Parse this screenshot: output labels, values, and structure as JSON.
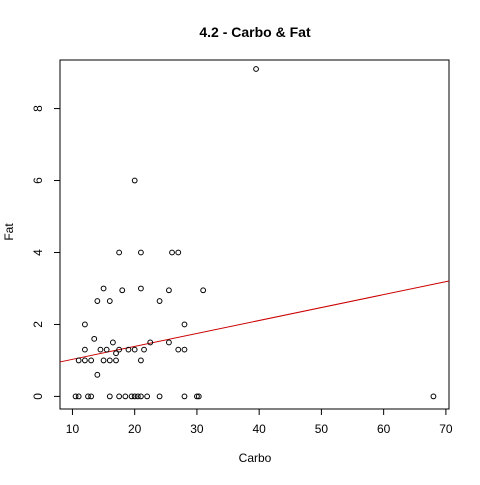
{
  "chart_data": {
    "type": "scatter",
    "title": "4.2 - Carbo & Fat",
    "xlabel": "Carbo",
    "ylabel": "Fat",
    "xlim": [
      8,
      70.5
    ],
    "ylim": [
      -0.35,
      9.35
    ],
    "x_ticks": [
      10,
      20,
      30,
      40,
      50,
      60,
      70
    ],
    "y_ticks": [
      0,
      2,
      4,
      6,
      8
    ],
    "grid": false,
    "legend": "none",
    "point_color": "#000000",
    "line_color": "#cc0000",
    "points": [
      {
        "x": 10.5,
        "y": 0
      },
      {
        "x": 11,
        "y": 0
      },
      {
        "x": 12.5,
        "y": 0
      },
      {
        "x": 13,
        "y": 0
      },
      {
        "x": 16,
        "y": 0
      },
      {
        "x": 17.5,
        "y": 0
      },
      {
        "x": 18.5,
        "y": 0
      },
      {
        "x": 19.5,
        "y": 0
      },
      {
        "x": 20,
        "y": 0
      },
      {
        "x": 20.5,
        "y": 0
      },
      {
        "x": 21,
        "y": 0
      },
      {
        "x": 22,
        "y": 0
      },
      {
        "x": 24,
        "y": 0
      },
      {
        "x": 28,
        "y": 0
      },
      {
        "x": 30,
        "y": 0
      },
      {
        "x": 30.3,
        "y": 0
      },
      {
        "x": 68,
        "y": 0
      },
      {
        "x": 14,
        "y": 0.6
      },
      {
        "x": 11,
        "y": 1
      },
      {
        "x": 12,
        "y": 1
      },
      {
        "x": 13,
        "y": 1
      },
      {
        "x": 15,
        "y": 1
      },
      {
        "x": 16,
        "y": 1
      },
      {
        "x": 17,
        "y": 1
      },
      {
        "x": 21,
        "y": 1
      },
      {
        "x": 12,
        "y": 1.3
      },
      {
        "x": 14.5,
        "y": 1.3
      },
      {
        "x": 15.5,
        "y": 1.3
      },
      {
        "x": 17.5,
        "y": 1.3
      },
      {
        "x": 19,
        "y": 1.3
      },
      {
        "x": 20,
        "y": 1.3
      },
      {
        "x": 21.5,
        "y": 1.3
      },
      {
        "x": 27,
        "y": 1.3
      },
      {
        "x": 28,
        "y": 1.3
      },
      {
        "x": 17,
        "y": 1.2
      },
      {
        "x": 13.5,
        "y": 1.6
      },
      {
        "x": 16.5,
        "y": 1.5
      },
      {
        "x": 22.5,
        "y": 1.5
      },
      {
        "x": 25.5,
        "y": 1.5
      },
      {
        "x": 12,
        "y": 2
      },
      {
        "x": 28,
        "y": 2
      },
      {
        "x": 14,
        "y": 2.65
      },
      {
        "x": 16,
        "y": 2.65
      },
      {
        "x": 24,
        "y": 2.65
      },
      {
        "x": 15,
        "y": 3
      },
      {
        "x": 18,
        "y": 2.95
      },
      {
        "x": 21,
        "y": 3
      },
      {
        "x": 25.5,
        "y": 2.95
      },
      {
        "x": 31,
        "y": 2.95
      },
      {
        "x": 17.5,
        "y": 4
      },
      {
        "x": 21,
        "y": 4
      },
      {
        "x": 26,
        "y": 4
      },
      {
        "x": 27,
        "y": 4
      },
      {
        "x": 20,
        "y": 6
      },
      {
        "x": 39.5,
        "y": 9.1
      }
    ],
    "regression_line": {
      "intercept": 0.67,
      "slope": 0.036
    }
  }
}
